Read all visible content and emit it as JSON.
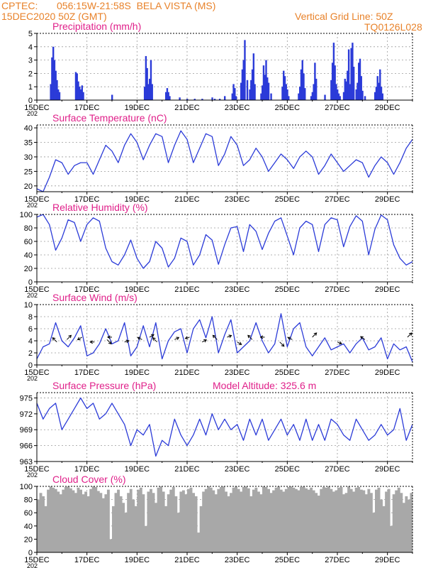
{
  "header": {
    "source": "CPTEC:",
    "location": "056:15W-21:58S  BELA VISTA (MS)",
    "run": "15DEC2020 50Z (GMT)",
    "grid_note": "Vertical Grid Line: 50Z",
    "model_code": "TQ0126L028"
  },
  "colors": {
    "header": "#e8822a",
    "titles": "#e0208a",
    "series": "#2b3bd8",
    "cloud": "#a8a8a8",
    "axis": "#000000"
  },
  "x_tick_labels": [
    "15DEC",
    "17DEC",
    "19DEC",
    "21DEC",
    "23DEC",
    "25DEC",
    "27DEC",
    "29DEC"
  ],
  "x_cut_label": "202",
  "chart_data": [
    {
      "type": "bar",
      "title": "Precipitation  (mm/h)",
      "ylim": [
        0,
        5
      ],
      "yticks": [
        0,
        1,
        2,
        3,
        4,
        5
      ],
      "x_unit": "days after 15DEC 00Z",
      "x": [
        0.55,
        0.6,
        0.65,
        0.7,
        0.75,
        0.8,
        0.85,
        0.9,
        1.55,
        1.6,
        1.65,
        1.7,
        1.75,
        1.8,
        1.85,
        3.0,
        4.3,
        4.35,
        4.4,
        4.45,
        4.5,
        4.55,
        4.6,
        5.15,
        5.2,
        5.25,
        5.3,
        5.7,
        6.0,
        6.3,
        6.6,
        7.0,
        7.1,
        7.3,
        7.5,
        7.8,
        7.85,
        7.9,
        7.95,
        8.15,
        8.2,
        8.25,
        8.3,
        8.4,
        8.5,
        8.55,
        8.6,
        8.65,
        8.7,
        8.95,
        9.0,
        9.05,
        9.1,
        9.15,
        9.2,
        9.25,
        9.35,
        9.8,
        9.85,
        9.9,
        9.95,
        10.0,
        10.05,
        10.45,
        10.5,
        10.55,
        10.6,
        10.65,
        10.7,
        10.95,
        11.0,
        11.05,
        11.1,
        11.15,
        11.5,
        11.75,
        11.8,
        11.85,
        11.9,
        11.95,
        12.0,
        12.05,
        12.1,
        12.25,
        12.3,
        12.35,
        12.4,
        12.45,
        12.5,
        12.55,
        12.6,
        12.65,
        12.75,
        12.8,
        12.85,
        12.9,
        12.95,
        13.0,
        13.1,
        13.5,
        13.55,
        13.6,
        13.65,
        13.7,
        13.75,
        13.8
      ],
      "values": [
        1.2,
        3.2,
        4.0,
        3.0,
        2.2,
        1.5,
        0.8,
        0.6,
        2.1,
        2.0,
        1.4,
        1.0,
        0.8,
        1.1,
        0.6,
        0.4,
        1.0,
        3.3,
        2.4,
        1.2,
        1.6,
        3.0,
        1.2,
        0.6,
        0.9,
        0.6,
        0.3,
        0.2,
        0.1,
        0.1,
        0.1,
        0.2,
        0.1,
        0.1,
        0.3,
        0.5,
        1.2,
        0.9,
        0.3,
        1.3,
        2.3,
        3.0,
        4.5,
        1.5,
        0.8,
        1.5,
        2.3,
        3.5,
        1.2,
        0.5,
        1.1,
        2.6,
        1.9,
        3.0,
        1.7,
        1.3,
        0.5,
        1.0,
        2.2,
        1.8,
        1.2,
        0.8,
        0.3,
        0.5,
        1.0,
        2.3,
        3.0,
        2.0,
        0.9,
        0.3,
        0.6,
        1.2,
        2.8,
        1.6,
        0.4,
        1.5,
        2.8,
        4.3,
        2.6,
        1.2,
        0.8,
        0.5,
        0.3,
        0.6,
        1.6,
        1.4,
        2.2,
        3.8,
        1.2,
        3.9,
        4.3,
        2.5,
        0.8,
        1.3,
        2.8,
        3.1,
        1.8,
        0.7,
        0.3,
        0.6,
        1.0,
        1.8,
        1.3,
        2.3,
        1.0,
        0.5
      ]
    },
    {
      "type": "line",
      "title": "Surface Temperature (nC)",
      "ylim": [
        18,
        41
      ],
      "yticks": [
        20,
        25,
        30,
        35,
        40
      ],
      "x_unit": "days after 15DEC 00Z",
      "x": [
        0,
        0.25,
        0.5,
        0.75,
        1.0,
        1.25,
        1.5,
        1.75,
        2.0,
        2.25,
        2.5,
        2.75,
        3.0,
        3.25,
        3.5,
        3.75,
        4.0,
        4.25,
        4.5,
        4.75,
        5.0,
        5.25,
        5.5,
        5.75,
        6.0,
        6.25,
        6.5,
        6.75,
        7.0,
        7.25,
        7.5,
        7.75,
        8.0,
        8.25,
        8.5,
        8.75,
        9.0,
        9.25,
        9.5,
        9.75,
        10.0,
        10.25,
        10.5,
        10.75,
        11.0,
        11.25,
        11.5,
        11.75,
        12.0,
        12.25,
        12.5,
        12.75,
        13.0,
        13.25,
        13.5,
        13.75,
        14.0,
        14.25,
        14.5,
        14.75,
        15.0
      ],
      "y": [
        19,
        18,
        23,
        29,
        28,
        24,
        27,
        28,
        28,
        24,
        29,
        34,
        32,
        28,
        34,
        38,
        35,
        29,
        34,
        38,
        37,
        28,
        34,
        39,
        36,
        28,
        33,
        38,
        37,
        27,
        31,
        37,
        34,
        27,
        29,
        33,
        30,
        25,
        28,
        31,
        29,
        26,
        30,
        32,
        30,
        24,
        27,
        31,
        28,
        25,
        27,
        29,
        28,
        23,
        27,
        30,
        28,
        24,
        28,
        33,
        36
      ]
    },
    {
      "type": "line",
      "title": "Relative Humidity  (%)",
      "ylim": [
        0,
        100
      ],
      "yticks": [
        0,
        20,
        40,
        60,
        80,
        100
      ],
      "x_unit": "days after 15DEC 00Z",
      "x": [
        0,
        0.25,
        0.5,
        0.75,
        1.0,
        1.25,
        1.5,
        1.75,
        2.0,
        2.25,
        2.5,
        2.75,
        3.0,
        3.25,
        3.5,
        3.75,
        4.0,
        4.25,
        4.5,
        4.75,
        5.0,
        5.25,
        5.5,
        5.75,
        6.0,
        6.25,
        6.5,
        6.75,
        7.0,
        7.25,
        7.5,
        7.75,
        8.0,
        8.25,
        8.5,
        8.75,
        9.0,
        9.25,
        9.5,
        9.75,
        10.0,
        10.25,
        10.5,
        10.75,
        11.0,
        11.25,
        11.5,
        11.75,
        12.0,
        12.25,
        12.5,
        12.75,
        13.0,
        13.25,
        13.5,
        13.75,
        14.0,
        14.25,
        14.5,
        14.75,
        15.0
      ],
      "y": [
        96,
        100,
        85,
        47,
        65,
        92,
        88,
        60,
        85,
        95,
        90,
        50,
        30,
        25,
        40,
        62,
        35,
        20,
        30,
        60,
        50,
        22,
        35,
        65,
        60,
        25,
        40,
        70,
        62,
        26,
        55,
        80,
        82,
        45,
        85,
        75,
        48,
        72,
        90,
        95,
        68,
        40,
        80,
        90,
        85,
        45,
        85,
        95,
        92,
        52,
        82,
        98,
        90,
        40,
        78,
        99,
        92,
        55,
        35,
        25,
        30
      ]
    },
    {
      "type": "line",
      "title": "Surface Wind  (m/s)",
      "ylim": [
        0,
        10
      ],
      "yticks": [
        0,
        2,
        4,
        6,
        8,
        10
      ],
      "x_unit": "days after 15DEC 00Z",
      "x": [
        0,
        0.25,
        0.5,
        0.75,
        1.0,
        1.25,
        1.5,
        1.75,
        2.0,
        2.25,
        2.5,
        2.75,
        3.0,
        3.25,
        3.5,
        3.75,
        4.0,
        4.25,
        4.5,
        4.75,
        5.0,
        5.25,
        5.5,
        5.75,
        6.0,
        6.25,
        6.5,
        6.75,
        7.0,
        7.25,
        7.5,
        7.75,
        8.0,
        8.25,
        8.5,
        8.75,
        9.0,
        9.25,
        9.5,
        9.75,
        10.0,
        10.25,
        10.5,
        10.75,
        11.0,
        11.25,
        11.5,
        11.75,
        12.0,
        12.25,
        12.5,
        12.75,
        13.0,
        13.25,
        13.5,
        13.75,
        14.0,
        14.25,
        14.5,
        14.75,
        15.0
      ],
      "y": [
        1.0,
        3.0,
        3.5,
        7.0,
        4.0,
        3.0,
        4.5,
        6.5,
        1.5,
        2.0,
        3.5,
        6.0,
        3.5,
        4.0,
        7.0,
        1.5,
        3.0,
        6.5,
        3.0,
        7.0,
        1.0,
        4.0,
        5.5,
        6.0,
        2.0,
        6.0,
        7.5,
        4.5,
        8.0,
        2.0,
        5.0,
        7.5,
        2.0,
        3.0,
        4.0,
        7.0,
        4.0,
        2.0,
        3.5,
        8.5,
        3.0,
        6.0,
        7.0,
        3.0,
        1.5,
        3.0,
        4.5,
        2.5,
        3.0,
        3.5,
        2.0,
        3.5,
        4.5,
        2.5,
        3.0,
        4.5,
        1.0,
        3.5,
        2.5,
        3.0,
        0.5
      ]
    },
    {
      "type": "line",
      "title": "Surface Pressure (hPa)",
      "annotation": "Model Altitude:  325.6  m",
      "ylim": [
        963,
        976
      ],
      "yticks": [
        963,
        966,
        969,
        972,
        975
      ],
      "x_unit": "days after 15DEC 00Z",
      "x": [
        0,
        0.25,
        0.5,
        0.75,
        1.0,
        1.25,
        1.5,
        1.75,
        2.0,
        2.25,
        2.5,
        2.75,
        3.0,
        3.25,
        3.5,
        3.75,
        4.0,
        4.25,
        4.5,
        4.75,
        5.0,
        5.25,
        5.5,
        5.75,
        6.0,
        6.25,
        6.5,
        6.75,
        7.0,
        7.25,
        7.5,
        7.75,
        8.0,
        8.25,
        8.5,
        8.75,
        9.0,
        9.25,
        9.5,
        9.75,
        10.0,
        10.25,
        10.5,
        10.75,
        11.0,
        11.25,
        11.5,
        11.75,
        12.0,
        12.25,
        12.5,
        12.75,
        13.0,
        13.25,
        13.5,
        13.75,
        14.0,
        14.25,
        14.5,
        14.75,
        15.0
      ],
      "y": [
        974,
        971,
        973,
        974,
        969,
        971,
        973,
        975,
        973,
        974,
        971,
        972,
        974,
        972,
        970,
        966,
        969,
        968,
        970,
        964,
        967,
        966,
        971,
        968,
        966,
        968,
        971,
        968,
        972,
        969,
        971,
        969,
        970,
        967,
        971,
        968,
        971,
        967,
        969,
        971,
        968,
        970,
        967,
        971,
        967,
        970,
        967,
        971,
        970,
        968,
        967,
        971,
        969,
        967,
        968,
        970,
        968,
        969,
        973,
        967,
        970
      ]
    },
    {
      "type": "bar",
      "title": "Cloud Cover  (%)",
      "ylim": [
        0,
        100
      ],
      "yticks": [
        0,
        20,
        40,
        60,
        80,
        100
      ],
      "x_unit": "days after 15DEC 00Z",
      "x": [
        0.0,
        0.1,
        0.2,
        0.3,
        0.4,
        0.5,
        0.6,
        0.7,
        0.8,
        0.9,
        1.0,
        1.1,
        1.2,
        1.3,
        1.4,
        1.5,
        1.6,
        1.7,
        1.8,
        1.9,
        2.0,
        2.1,
        2.2,
        2.3,
        2.4,
        2.5,
        2.6,
        2.7,
        2.8,
        2.9,
        3.0,
        3.1,
        3.2,
        3.3,
        3.4,
        3.5,
        3.6,
        3.7,
        3.8,
        3.9,
        4.0,
        4.1,
        4.2,
        4.3,
        4.4,
        4.5,
        4.6,
        4.7,
        4.8,
        4.9,
        5.0,
        5.1,
        5.2,
        5.3,
        5.4,
        5.5,
        5.6,
        5.7,
        5.8,
        5.9,
        6.0,
        6.1,
        6.2,
        6.3,
        6.4,
        6.5,
        6.6,
        6.7,
        6.8,
        6.9,
        7.0,
        7.1,
        7.2,
        7.3,
        7.4,
        7.5,
        7.6,
        7.7,
        7.8,
        7.9,
        8.0,
        8.1,
        8.2,
        8.3,
        8.4,
        8.5,
        8.6,
        8.7,
        8.8,
        8.9,
        9.0,
        9.1,
        9.2,
        9.3,
        9.4,
        9.5,
        9.6,
        9.7,
        9.8,
        9.9,
        10.0,
        10.1,
        10.2,
        10.3,
        10.4,
        10.5,
        10.6,
        10.7,
        10.8,
        10.9,
        11.0,
        11.1,
        11.2,
        11.3,
        11.4,
        11.5,
        11.6,
        11.7,
        11.8,
        11.9,
        12.0,
        12.1,
        12.2,
        12.3,
        12.4,
        12.5,
        12.6,
        12.7,
        12.8,
        12.9,
        13.0,
        13.1,
        13.2,
        13.3,
        13.4,
        13.5,
        13.6,
        13.7,
        13.8,
        13.9,
        14.0,
        14.1,
        14.2,
        14.3,
        14.4,
        14.5,
        14.6,
        14.7,
        14.8,
        14.9
      ],
      "values": [
        80,
        90,
        85,
        70,
        95,
        100,
        98,
        96,
        92,
        88,
        95,
        99,
        100,
        97,
        94,
        90,
        98,
        95,
        88,
        92,
        85,
        96,
        100,
        99,
        93,
        90,
        82,
        88,
        95,
        20,
        70,
        90,
        95,
        85,
        75,
        60,
        90,
        96,
        80,
        70,
        95,
        98,
        88,
        40,
        92,
        96,
        90,
        75,
        98,
        100,
        92,
        70,
        88,
        95,
        99,
        85,
        60,
        92,
        94,
        88,
        96,
        98,
        90,
        85,
        30,
        70,
        92,
        96,
        100,
        98,
        94,
        88,
        96,
        99,
        100,
        92,
        85,
        90,
        98,
        100,
        96,
        92,
        99,
        100,
        97,
        85,
        95,
        98,
        92,
        88,
        100,
        99,
        96,
        90,
        94,
        98,
        100,
        95,
        92,
        96,
        99,
        100,
        98,
        96,
        94,
        99,
        100,
        97,
        95,
        98,
        94,
        90,
        86,
        96,
        99,
        98,
        100,
        96,
        92,
        94,
        98,
        99,
        88,
        90,
        100,
        96,
        92,
        98,
        99,
        95,
        94,
        88,
        96,
        90,
        60,
        95,
        98,
        80,
        70,
        92,
        96,
        40,
        88,
        94,
        98,
        90,
        75,
        85,
        80,
        90
      ]
    }
  ]
}
